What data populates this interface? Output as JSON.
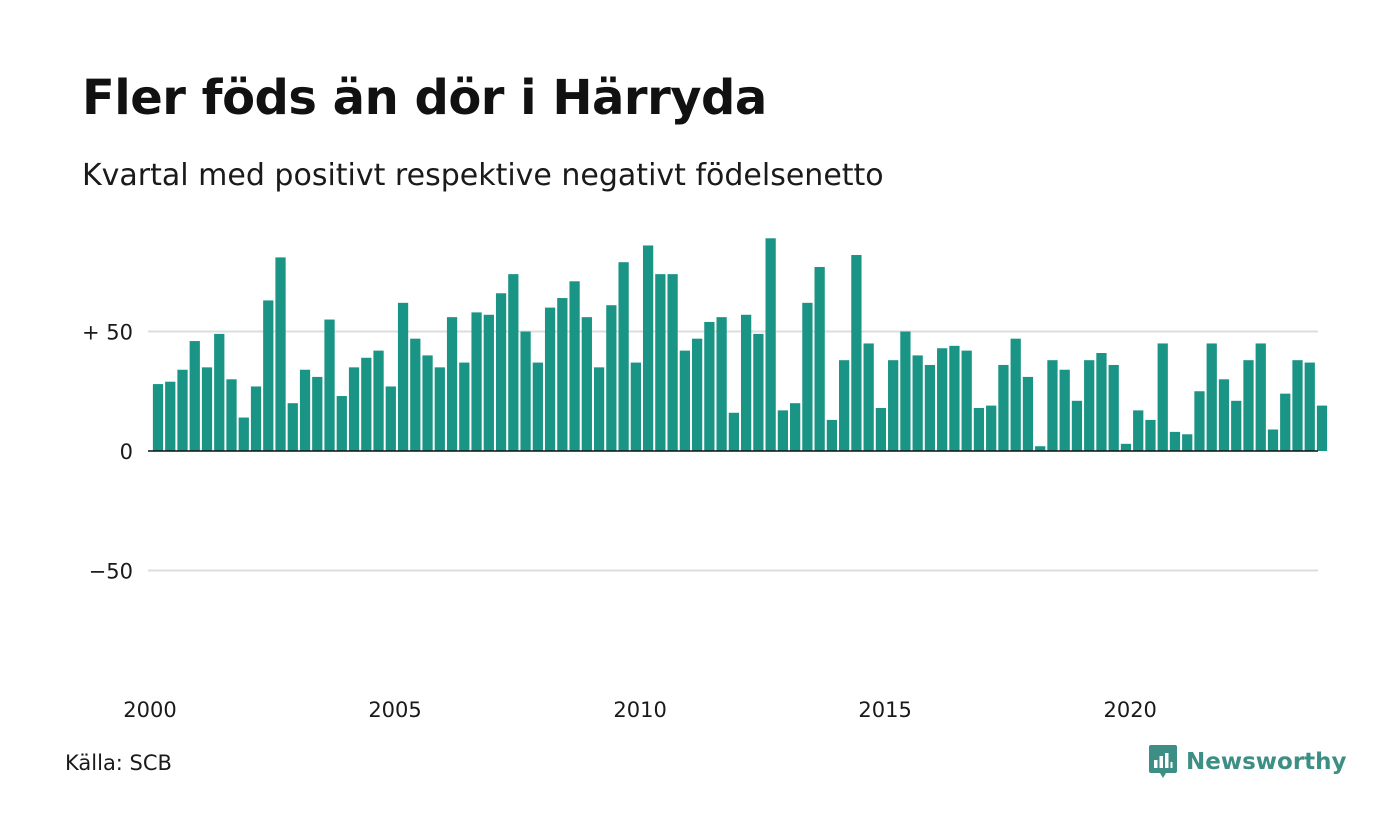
{
  "header": {
    "title": "Fler föds än dör i Härryda",
    "subtitle": "Kvartal med positivt respektive negativt födelsenetto"
  },
  "footer": {
    "source": "Källa: SCB",
    "brand": "Newsworthy"
  },
  "colors": {
    "bar": "#1a9485",
    "grid": "#dddddd",
    "zero_line": "#111111",
    "brand": "#3d8f86"
  },
  "chart_data": {
    "type": "bar",
    "title": "Fler föds än dör i Härryda",
    "subtitle": "Kvartal med positivt respektive negativt födelsenetto",
    "ylim": [
      -100,
      90
    ],
    "y_ticks": [
      {
        "value": 50,
        "label": "+ 50"
      },
      {
        "value": 0,
        "label": "0"
      },
      {
        "value": -50,
        "label": "−50"
      }
    ],
    "x_ticks": [
      {
        "index": 0,
        "label": "2000"
      },
      {
        "index": 20,
        "label": "2005"
      },
      {
        "index": 40,
        "label": "2010"
      },
      {
        "index": 60,
        "label": "2015"
      },
      {
        "index": 80,
        "label": "2020"
      }
    ],
    "grid": true,
    "categories": [
      "2000K1",
      "2000K2",
      "2000K3",
      "2000K4",
      "2001K1",
      "2001K2",
      "2001K3",
      "2001K4",
      "2002K1",
      "2002K2",
      "2002K3",
      "2002K4",
      "2003K1",
      "2003K2",
      "2003K3",
      "2003K4",
      "2004K1",
      "2004K2",
      "2004K3",
      "2004K4",
      "2005K1",
      "2005K2",
      "2005K3",
      "2005K4",
      "2006K1",
      "2006K2",
      "2006K3",
      "2006K4",
      "2007K1",
      "2007K2",
      "2007K3",
      "2007K4",
      "2008K1",
      "2008K2",
      "2008K3",
      "2008K4",
      "2009K1",
      "2009K2",
      "2009K3",
      "2009K4",
      "2010K1",
      "2010K2",
      "2010K3",
      "2010K4",
      "2011K1",
      "2011K2",
      "2011K3",
      "2011K4",
      "2012K1",
      "2012K2",
      "2012K3",
      "2012K4",
      "2013K1",
      "2013K2",
      "2013K3",
      "2013K4",
      "2014K1",
      "2014K2",
      "2014K3",
      "2014K4",
      "2015K1",
      "2015K2",
      "2015K3",
      "2015K4",
      "2016K1",
      "2016K2",
      "2016K3",
      "2016K4",
      "2017K1",
      "2017K2",
      "2017K3",
      "2017K4",
      "2018K1",
      "2018K2",
      "2018K3",
      "2018K4",
      "2019K1",
      "2019K2",
      "2019K3",
      "2019K4",
      "2020K1",
      "2020K2",
      "2020K3",
      "2020K4",
      "2021K1",
      "2021K2",
      "2021K3",
      "2021K4",
      "2022K1",
      "2022K2",
      "2022K3",
      "2022K4",
      "2023K1",
      "2023K2",
      "2023K3",
      "2023K4"
    ],
    "values": [
      28,
      29,
      34,
      46,
      35,
      49,
      30,
      14,
      27,
      63,
      81,
      20,
      34,
      31,
      55,
      23,
      35,
      39,
      42,
      27,
      62,
      47,
      40,
      35,
      56,
      37,
      58,
      57,
      66,
      74,
      50,
      37,
      60,
      64,
      71,
      56,
      35,
      61,
      79,
      37,
      86,
      74,
      74,
      42,
      47,
      54,
      56,
      16,
      57,
      49,
      89,
      17,
      20,
      62,
      77,
      13,
      38,
      82,
      45,
      18,
      38,
      50,
      40,
      36,
      43,
      44,
      42,
      18,
      19,
      36,
      47,
      31,
      2,
      38,
      34,
      21,
      38,
      41,
      36,
      3,
      17,
      13,
      45,
      8,
      7,
      25,
      45,
      30,
      21,
      38,
      45,
      9,
      24,
      38,
      37,
      19
    ]
  }
}
